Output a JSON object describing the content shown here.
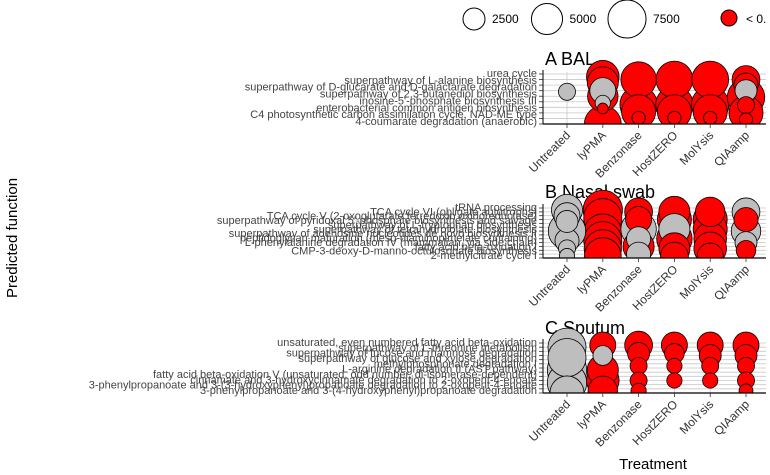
{
  "chart_data": {
    "type": "scatter",
    "xlabel": "Treatment",
    "ylabel": "Predicted function",
    "legend": {
      "size_title": "",
      "size_values": [
        2500,
        5000,
        7500
      ],
      "size_labels": [
        "2500",
        "5000",
        "7500"
      ],
      "color_label": "< 0.",
      "color_value": "#FF0000",
      "nonsig_color": "#BEBEBE"
    },
    "categories": [
      "Untreated",
      "lyPMA",
      "Benzonase",
      "HostZERO",
      "MolYsis",
      "QIAamp"
    ],
    "panels": [
      {
        "tag": "A",
        "title": "BAL",
        "rows": 10,
        "labels": [
          "urea cycle",
          "superpathway of L-alanine biosynthesis",
          "superpathway of D-glucarate and D-galactarate degradation",
          "superpathway of 2,3-butanediol biosynthesis",
          "inosine-5'-phosphate biosynthesis III",
          "enterobacterial common antigen biosynthesis",
          "C4 photosynthetic carbon assimilation cycle, NAD-ME type",
          "4-coumarate degradation (anaerobic)"
        ],
        "points": [
          {
            "x": 0,
            "row": 3.2,
            "size": 1500,
            "sig": false
          },
          {
            "x": 1,
            "row": 0.5,
            "size": 5500,
            "sig": true
          },
          {
            "x": 1,
            "row": 1.5,
            "size": 5000,
            "sig": true
          },
          {
            "x": 1,
            "row": 3,
            "size": 3500,
            "sig": false
          },
          {
            "x": 1,
            "row": 4,
            "size": 4800,
            "sig": true
          },
          {
            "x": 1,
            "row": 5.2,
            "size": 1200,
            "sig": false
          },
          {
            "x": 1,
            "row": 6.2,
            "size": 600,
            "sig": true
          },
          {
            "x": 1,
            "row": 9.0,
            "size": 7000,
            "sig": true
          },
          {
            "x": 2,
            "row": 1.0,
            "size": 6500,
            "sig": true
          },
          {
            "x": 2,
            "row": 5.5,
            "size": 7200,
            "sig": true
          },
          {
            "x": 2,
            "row": 6.8,
            "size": 6000,
            "sig": true
          },
          {
            "x": 2,
            "row": 7.9,
            "size": 900,
            "sig": true
          },
          {
            "x": 3,
            "row": 1.0,
            "size": 7000,
            "sig": true
          },
          {
            "x": 3,
            "row": 5.5,
            "size": 7200,
            "sig": true
          },
          {
            "x": 3,
            "row": 6.8,
            "size": 6000,
            "sig": true
          },
          {
            "x": 3,
            "row": 7.9,
            "size": 900,
            "sig": true
          },
          {
            "x": 4,
            "row": 1.0,
            "size": 7000,
            "sig": true
          },
          {
            "x": 4,
            "row": 5.5,
            "size": 7200,
            "sig": true
          },
          {
            "x": 4,
            "row": 6.8,
            "size": 6000,
            "sig": true
          },
          {
            "x": 4,
            "row": 7.9,
            "size": 900,
            "sig": true
          },
          {
            "x": 5,
            "row": 1.0,
            "size": 4000,
            "sig": true
          },
          {
            "x": 5,
            "row": 2.0,
            "size": 3000,
            "sig": true
          },
          {
            "x": 5,
            "row": 3.0,
            "size": 2500,
            "sig": false
          },
          {
            "x": 5,
            "row": 4.2,
            "size": 7200,
            "sig": true
          },
          {
            "x": 5,
            "row": 5.6,
            "size": 1500,
            "sig": true
          },
          {
            "x": 5,
            "row": 7.0,
            "size": 6000,
            "sig": true
          },
          {
            "x": 5,
            "row": 8.2,
            "size": 900,
            "sig": true
          }
        ]
      },
      {
        "tag": "B",
        "title": "Nasal swab",
        "rows": 14,
        "labels": [
          "tRNA processing",
          "TCA cycle VI (obligate autotrophs)",
          "TCA cycle V (2-oxoglutarate:ferredoxin oxidoreductase)",
          "superpathway of pyridoxal 5'-phosphate biosynthesis and salvage",
          "superpathway of L-tryptophan biosynthesis",
          "superpathway of tetrahydrofolate biosynthesis",
          "superpathway of adenosine nucleotides de novo biosynthesis II",
          "peptidoglycan maturation (meso-diaminopimelate containing)",
          "L-phenylalanine degradation IV (mammalian, via side chain)",
          "fatty acid beta-oxidation I",
          "CMP-3-deoxy-D-manno-octulosonate biosynthesis",
          "2-methylcitrate cycle I"
        ],
        "points": [
          {
            "x": 0,
            "row": 0.5,
            "size": 5000,
            "sig": false
          },
          {
            "x": 0,
            "row": 2.0,
            "size": 3500,
            "sig": false
          },
          {
            "x": 0,
            "row": 3.5,
            "size": 2500,
            "sig": false
          },
          {
            "x": 0,
            "row": 6.0,
            "size": 7200,
            "sig": false
          },
          {
            "x": 0,
            "row": 8.5,
            "size": 3000,
            "sig": false
          },
          {
            "x": 0,
            "row": 10.5,
            "size": 1500,
            "sig": false
          },
          {
            "x": 0,
            "row": 12.5,
            "size": 1200,
            "sig": false
          },
          {
            "x": 1,
            "row": 0.5,
            "size": 8000,
            "sig": true
          },
          {
            "x": 1,
            "row": 2.5,
            "size": 7500,
            "sig": true
          },
          {
            "x": 1,
            "row": 4.5,
            "size": 8000,
            "sig": true
          },
          {
            "x": 1,
            "row": 6.5,
            "size": 7500,
            "sig": true
          },
          {
            "x": 1,
            "row": 8.5,
            "size": 7500,
            "sig": true
          },
          {
            "x": 1,
            "row": 10.5,
            "size": 7200,
            "sig": true
          },
          {
            "x": 1,
            "row": 12.5,
            "size": 7000,
            "sig": true
          },
          {
            "x": 2,
            "row": 1.0,
            "size": 4000,
            "sig": true
          },
          {
            "x": 2,
            "row": 3.0,
            "size": 3500,
            "sig": true
          },
          {
            "x": 2,
            "row": 5.5,
            "size": 6500,
            "sig": false
          },
          {
            "x": 2,
            "row": 8.0,
            "size": 3000,
            "sig": false
          },
          {
            "x": 2,
            "row": 10.0,
            "size": 5000,
            "sig": true
          },
          {
            "x": 2,
            "row": 12.0,
            "size": 3000,
            "sig": false
          },
          {
            "x": 3,
            "row": 1.0,
            "size": 5000,
            "sig": true
          },
          {
            "x": 3,
            "row": 3.0,
            "size": 6000,
            "sig": true
          },
          {
            "x": 3,
            "row": 5.5,
            "size": 5000,
            "sig": false
          },
          {
            "x": 3,
            "row": 8.0,
            "size": 6500,
            "sig": true
          },
          {
            "x": 3,
            "row": 10.5,
            "size": 5000,
            "sig": true
          },
          {
            "x": 3,
            "row": 12.5,
            "size": 4000,
            "sig": true
          },
          {
            "x": 4,
            "row": 1.0,
            "size": 4500,
            "sig": true
          },
          {
            "x": 4,
            "row": 3.0,
            "size": 6000,
            "sig": true
          },
          {
            "x": 4,
            "row": 5.5,
            "size": 6000,
            "sig": true
          },
          {
            "x": 4,
            "row": 8.0,
            "size": 5500,
            "sig": true
          },
          {
            "x": 4,
            "row": 10.5,
            "size": 5500,
            "sig": true
          },
          {
            "x": 4,
            "row": 12.5,
            "size": 3500,
            "sig": true
          },
          {
            "x": 5,
            "row": 1.0,
            "size": 4000,
            "sig": false
          },
          {
            "x": 5,
            "row": 3.0,
            "size": 3000,
            "sig": true
          },
          {
            "x": 5,
            "row": 6.0,
            "size": 4500,
            "sig": false
          },
          {
            "x": 5,
            "row": 9.0,
            "size": 2500,
            "sig": false
          },
          {
            "x": 5,
            "row": 11.0,
            "size": 2000,
            "sig": true
          }
        ]
      },
      {
        "tag": "C",
        "title": "Sputum",
        "rows": 13,
        "labels": [
          "unsaturated, even numbered fatty acid beta-oxidation",
          "superpathway of L-threonine metabolism",
          "superpathway of fucose and rhamnose degradation",
          "superpathway of glucose and xylose degradation",
          "methylphosphonate degradation I",
          "L-arginine degradation II (AST pathway)",
          "fatty acid beta-oxidation V (unsaturated, odd number, di-isomerase-dependent)",
          "cinnamate and 3-hydroxycinnamate degradation to 2-oxopent-4-enoate",
          "3-phenylpropanoate and 3-(3-hydroxyphenyl)propanoate degradation to 2-oxopent-4-enoate",
          "3-phenylpropanoate and 3-(4-hydroxyphenyl)propanoate degradation"
        ],
        "points": [
          {
            "x": 0,
            "row": 1.0,
            "size": 7500,
            "sig": false
          },
          {
            "x": 0,
            "row": 3.5,
            "size": 7500,
            "sig": false
          },
          {
            "x": 0,
            "row": 6.5,
            "size": 8000,
            "sig": false
          },
          {
            "x": 0,
            "row": 9.5,
            "size": 8000,
            "sig": false
          },
          {
            "x": 0,
            "row": 12.0,
            "size": 6000,
            "sig": false
          },
          {
            "x": 1,
            "row": 0.5,
            "size": 3500,
            "sig": true
          },
          {
            "x": 1,
            "row": 3.0,
            "size": 2000,
            "sig": false
          },
          {
            "x": 1,
            "row": 6.5,
            "size": 5000,
            "sig": true
          },
          {
            "x": 1,
            "row": 9.0,
            "size": 5500,
            "sig": true
          },
          {
            "x": 1,
            "row": 11.5,
            "size": 4500,
            "sig": true
          },
          {
            "x": 2,
            "row": 0.5,
            "size": 4000,
            "sig": true
          },
          {
            "x": 2,
            "row": 2.5,
            "size": 2500,
            "sig": true
          },
          {
            "x": 2,
            "row": 5.5,
            "size": 1500,
            "sig": true
          },
          {
            "x": 2,
            "row": 9.0,
            "size": 1500,
            "sig": true
          },
          {
            "x": 2,
            "row": 11.5,
            "size": 1200,
            "sig": true
          },
          {
            "x": 3,
            "row": 0.5,
            "size": 3500,
            "sig": true
          },
          {
            "x": 3,
            "row": 2.5,
            "size": 2000,
            "sig": true
          },
          {
            "x": 3,
            "row": 5.5,
            "size": 1200,
            "sig": true
          },
          {
            "x": 3,
            "row": 9.0,
            "size": 1200,
            "sig": true
          },
          {
            "x": 4,
            "row": 0.5,
            "size": 3500,
            "sig": true
          },
          {
            "x": 4,
            "row": 3.0,
            "size": 2500,
            "sig": true
          },
          {
            "x": 4,
            "row": 5.5,
            "size": 1500,
            "sig": true
          },
          {
            "x": 4,
            "row": 9.0,
            "size": 1200,
            "sig": true
          },
          {
            "x": 5,
            "row": 0.5,
            "size": 3500,
            "sig": true
          },
          {
            "x": 5,
            "row": 3.0,
            "size": 2500,
            "sig": true
          },
          {
            "x": 5,
            "row": 5.5,
            "size": 1500,
            "sig": true
          },
          {
            "x": 5,
            "row": 9.0,
            "size": 1500,
            "sig": true
          },
          {
            "x": 5,
            "row": 11.5,
            "size": 1000,
            "sig": true
          }
        ]
      }
    ]
  }
}
